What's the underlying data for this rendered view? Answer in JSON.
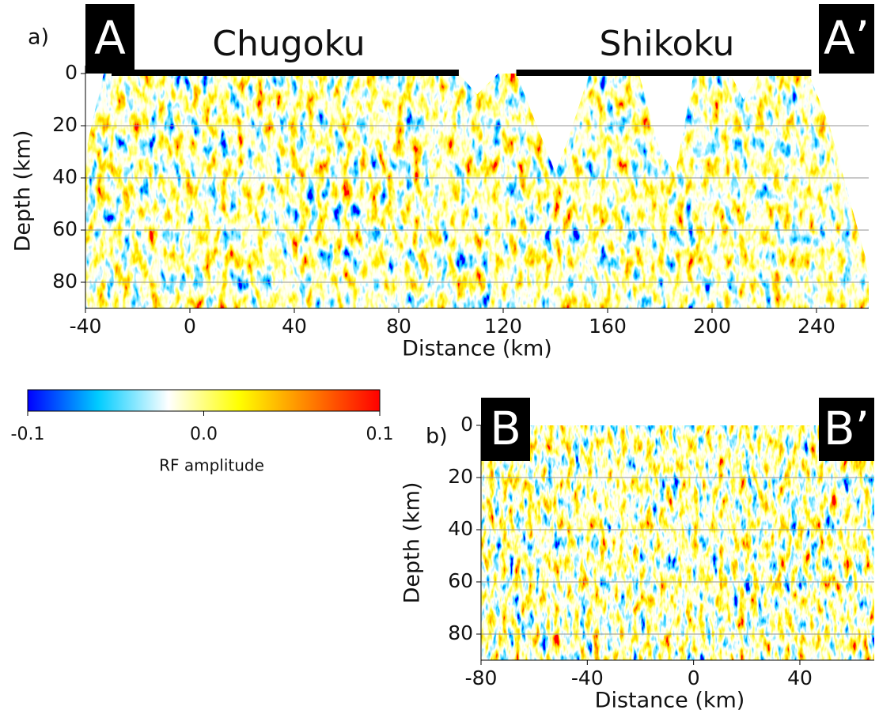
{
  "chart_data": [
    {
      "type": "heatmap",
      "panel_label": "a)",
      "x_label": "Distance (km)",
      "y_label": "Depth (km)",
      "annotations": [
        "A",
        "A’",
        "Chugoku",
        "Shikoku"
      ],
      "xlim": [
        -40,
        260
      ],
      "xticks": [
        -40,
        0,
        40,
        80,
        120,
        160,
        200,
        240
      ],
      "ylim": [
        90,
        0
      ],
      "yticks": [
        0,
        20,
        40,
        60,
        80
      ],
      "grid": true
    },
    {
      "type": "heatmap",
      "panel_label": "b)",
      "x_label": "Distance (km)",
      "y_label": "Depth (km)",
      "annotations": [
        "B",
        "B’"
      ],
      "xlim": [
        -80,
        68
      ],
      "xticks": [
        -80,
        -40,
        0,
        40
      ],
      "ylim": [
        90,
        0
      ],
      "yticks": [
        0,
        20,
        40,
        60,
        80
      ],
      "grid": true
    }
  ],
  "colorbar": {
    "label": "RF amplitude",
    "lim": [
      -0.1,
      0.1
    ],
    "ticks": [
      -0.1,
      {
        "value": 0,
        "label": "0.0"
      },
      0.1
    ],
    "colors": [
      "#0000ff",
      "#00ccff",
      "#ffffff",
      "#ffff00",
      "#ff8000",
      "#ff0000"
    ]
  }
}
